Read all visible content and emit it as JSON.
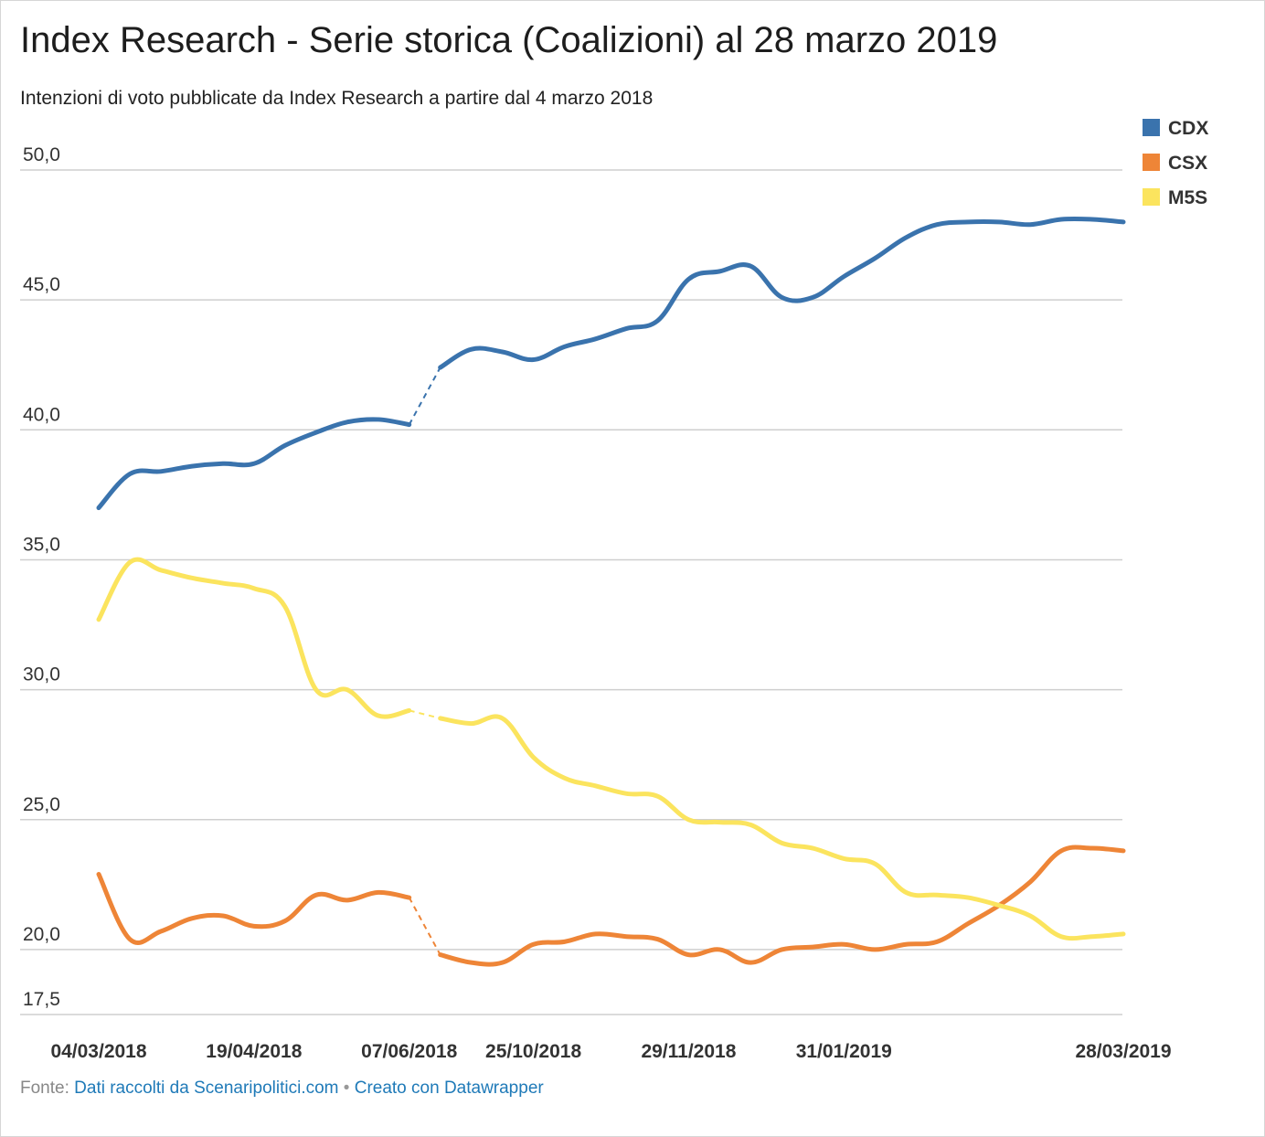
{
  "title": "Index Research - Serie storica (Coalizioni) al 28 marzo 2019",
  "subtitle": "Intenzioni di voto pubblicate da Index Research a partire dal 4 marzo 2018",
  "footer": {
    "source_label": "Fonte:",
    "source_link": "Dati raccolti da Scenaripolitici.com",
    "separator": "•",
    "credit_link": "Creato con Datawrapper"
  },
  "colors": {
    "CDX": "#3a73ad",
    "CSX": "#ee8537",
    "M5S": "#fbe45e",
    "grid": "#cfcfcf",
    "tick": "#333333"
  },
  "chart_data": {
    "type": "line",
    "y_ticks": [
      "50,0",
      "45,0",
      "40,0",
      "35,0",
      "30,0",
      "25,0",
      "20,0",
      "17,5"
    ],
    "y_tick_values": [
      50,
      45,
      40,
      35,
      30,
      25,
      20,
      17.5
    ],
    "ylim": [
      17.5,
      50
    ],
    "x_tick_labels": [
      "04/03/2018",
      "19/04/2018",
      "07/06/2018",
      "25/10/2018",
      "29/11/2018",
      "31/01/2019",
      "28/03/2019"
    ],
    "x_tick_index": [
      0,
      5,
      10,
      14,
      19,
      24,
      33
    ],
    "x_count": 34,
    "gap_after_index": 10,
    "grid": true,
    "legend_position": "top-right",
    "series": [
      {
        "name": "CDX",
        "values": [
          37.0,
          38.3,
          38.4,
          38.6,
          38.7,
          38.7,
          39.4,
          39.9,
          40.3,
          40.4,
          40.2,
          42.4,
          43.1,
          43.0,
          42.7,
          43.2,
          43.5,
          43.9,
          44.2,
          45.8,
          46.1,
          46.3,
          45.1,
          45.1,
          45.9,
          46.6,
          47.4,
          47.9,
          48.0,
          48.0,
          47.9,
          48.1,
          48.1,
          48.0
        ]
      },
      {
        "name": "CSX",
        "values": [
          22.9,
          20.4,
          20.7,
          21.2,
          21.3,
          20.9,
          21.1,
          22.1,
          21.9,
          22.2,
          22.0,
          19.8,
          19.5,
          19.5,
          20.2,
          20.3,
          20.6,
          20.5,
          20.4,
          19.8,
          20.0,
          19.5,
          20.0,
          20.1,
          20.2,
          20.0,
          20.2,
          20.3,
          21.0,
          21.7,
          22.6,
          23.8,
          23.9,
          23.8
        ]
      },
      {
        "name": "M5S",
        "values": [
          32.7,
          34.9,
          34.6,
          34.3,
          34.1,
          33.9,
          33.2,
          30.0,
          30.0,
          29.0,
          29.2,
          28.9,
          28.7,
          28.9,
          27.4,
          26.6,
          26.3,
          26.0,
          25.9,
          25.0,
          24.9,
          24.8,
          24.1,
          23.9,
          23.5,
          23.3,
          22.2,
          22.1,
          22.0,
          21.7,
          21.3,
          20.5,
          20.5,
          20.6
        ]
      }
    ]
  }
}
